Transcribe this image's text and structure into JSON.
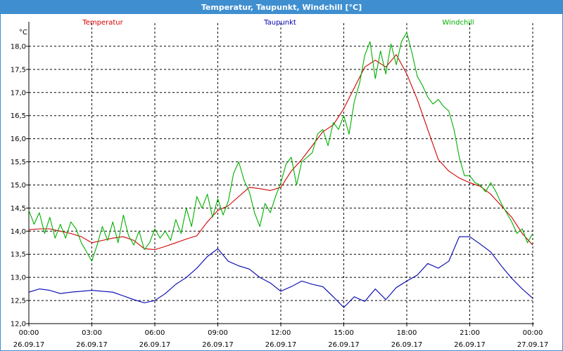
{
  "window": {
    "title": "Temperatur, Taupunkt, Windchill [°C]"
  },
  "chart_data": {
    "type": "line",
    "title": "Temperatur, Taupunkt, Windchill [°C]",
    "ylabel": "°C",
    "ylim": [
      12.0,
      18.5
    ],
    "yticks": [
      12.0,
      12.5,
      13.0,
      13.5,
      14.0,
      14.5,
      15.0,
      15.5,
      16.0,
      16.5,
      17.0,
      17.5,
      18.0
    ],
    "ytick_labels": [
      "12,0",
      "12,5",
      "13,0",
      "13,5",
      "14,0",
      "14,5",
      "15,0",
      "15,5",
      "16,0",
      "16,5",
      "17,0",
      "17,5",
      "18,0"
    ],
    "xlim": [
      0,
      24
    ],
    "xticks": [
      0,
      3,
      6,
      9,
      12,
      15,
      18,
      21,
      24
    ],
    "xtick_labels": [
      {
        "time": "00:00",
        "date": "26.09.17"
      },
      {
        "time": "03:00",
        "date": "26.09.17"
      },
      {
        "time": "06:00",
        "date": "26.09.17"
      },
      {
        "time": "09:00",
        "date": "26.09.17"
      },
      {
        "time": "12:00",
        "date": "26.09.17"
      },
      {
        "time": "15:00",
        "date": "26.09.17"
      },
      {
        "time": "18:00",
        "date": "26.09.17"
      },
      {
        "time": "21:00",
        "date": "26.09.17"
      },
      {
        "time": "00:00",
        "date": "27.09.17"
      }
    ],
    "grid": true,
    "legend_position": "top",
    "series": [
      {
        "name": "Temperatur",
        "color": "#d00000",
        "x": [
          0,
          0.5,
          1,
          1.5,
          2,
          2.5,
          3,
          3.5,
          4,
          4.5,
          5,
          5.5,
          6,
          6.5,
          7,
          7.5,
          8,
          8.5,
          9,
          9.5,
          10,
          10.5,
          11,
          11.5,
          12,
          12.5,
          13,
          13.5,
          14,
          14.5,
          15,
          15.5,
          16,
          16.5,
          17,
          17.5,
          18,
          18.5,
          19,
          19.5,
          20,
          20.5,
          21,
          21.5,
          22,
          22.5,
          23,
          23.5,
          24
        ],
        "y": [
          14.03,
          14.05,
          14.05,
          14.0,
          13.95,
          13.88,
          13.75,
          13.8,
          13.85,
          13.88,
          13.8,
          13.62,
          13.6,
          13.67,
          13.75,
          13.83,
          13.9,
          14.2,
          14.45,
          14.55,
          14.75,
          14.95,
          14.92,
          14.88,
          14.95,
          15.3,
          15.55,
          15.85,
          16.15,
          16.3,
          16.65,
          17.1,
          17.55,
          17.7,
          17.55,
          17.82,
          17.4,
          16.85,
          16.2,
          15.55,
          15.3,
          15.15,
          15.05,
          14.97,
          14.8,
          14.55,
          14.3,
          13.95,
          13.7
        ]
      },
      {
        "name": "Taupunkt",
        "color": "#0000b0",
        "x": [
          0,
          0.5,
          1,
          1.5,
          2,
          2.5,
          3,
          3.5,
          4,
          4.5,
          5,
          5.5,
          6,
          6.5,
          7,
          7.5,
          8,
          8.5,
          9,
          9.5,
          10,
          10.5,
          11,
          11.5,
          12,
          12.5,
          13,
          13.5,
          14,
          14.5,
          15,
          15.5,
          16,
          16.5,
          17,
          17.5,
          18,
          18.5,
          19,
          19.5,
          20,
          20.5,
          21,
          21.5,
          22,
          22.5,
          23,
          23.5,
          24
        ],
        "y": [
          12.68,
          12.75,
          12.72,
          12.65,
          12.68,
          12.7,
          12.72,
          12.7,
          12.68,
          12.6,
          12.52,
          12.45,
          12.5,
          12.65,
          12.85,
          13.0,
          13.2,
          13.45,
          13.62,
          13.35,
          13.25,
          13.18,
          13.0,
          12.88,
          12.7,
          12.8,
          12.92,
          12.85,
          12.8,
          12.58,
          12.35,
          12.58,
          12.48,
          12.75,
          12.52,
          12.78,
          12.92,
          13.05,
          13.3,
          13.2,
          13.35,
          13.88,
          13.88,
          13.72,
          13.55,
          13.25,
          12.98,
          12.75,
          12.55
        ]
      },
      {
        "name": "Windchill",
        "color": "#00b000",
        "x": [
          0,
          0.25,
          0.5,
          0.75,
          1,
          1.25,
          1.5,
          1.75,
          2,
          2.25,
          2.5,
          2.75,
          3,
          3.25,
          3.5,
          3.75,
          4,
          4.25,
          4.5,
          4.75,
          5,
          5.25,
          5.5,
          5.75,
          6,
          6.25,
          6.5,
          6.75,
          7,
          7.25,
          7.5,
          7.75,
          8,
          8.25,
          8.5,
          8.75,
          9,
          9.25,
          9.5,
          9.75,
          10,
          10.25,
          10.5,
          10.75,
          11,
          11.25,
          11.5,
          11.75,
          12,
          12.25,
          12.5,
          12.75,
          13,
          13.25,
          13.5,
          13.75,
          14,
          14.25,
          14.5,
          14.75,
          15,
          15.25,
          15.5,
          15.75,
          16,
          16.25,
          16.5,
          16.75,
          17,
          17.25,
          17.5,
          17.75,
          18,
          18.25,
          18.5,
          18.75,
          19,
          19.25,
          19.5,
          19.75,
          20,
          20.25,
          20.5,
          20.75,
          21,
          21.25,
          21.5,
          21.75,
          22,
          22.25,
          22.5,
          22.75,
          23,
          23.25,
          23.5,
          23.75,
          24
        ],
        "y": [
          14.45,
          14.15,
          14.4,
          13.95,
          14.3,
          13.85,
          14.15,
          13.85,
          14.2,
          14.05,
          13.75,
          13.55,
          13.35,
          13.7,
          14.1,
          13.8,
          14.2,
          13.75,
          14.35,
          13.9,
          13.7,
          14.0,
          13.6,
          13.75,
          14.05,
          13.85,
          14.0,
          13.8,
          14.25,
          13.95,
          14.5,
          14.1,
          14.75,
          14.5,
          14.8,
          14.3,
          14.7,
          14.35,
          14.65,
          15.25,
          15.5,
          15.1,
          14.85,
          14.4,
          14.1,
          14.6,
          14.4,
          14.75,
          15.05,
          15.45,
          15.6,
          15.0,
          15.5,
          15.6,
          15.7,
          16.1,
          16.2,
          15.85,
          16.35,
          16.2,
          16.5,
          16.1,
          16.8,
          17.2,
          17.8,
          18.1,
          17.3,
          17.9,
          17.4,
          18.05,
          17.6,
          18.1,
          18.3,
          17.85,
          17.35,
          17.15,
          16.9,
          16.75,
          16.85,
          16.7,
          16.6,
          16.2,
          15.6,
          15.2,
          15.2,
          15.05,
          15.0,
          14.85,
          15.05,
          14.85,
          14.6,
          14.4,
          14.2,
          13.95,
          14.05,
          13.75,
          13.95
        ]
      }
    ]
  }
}
